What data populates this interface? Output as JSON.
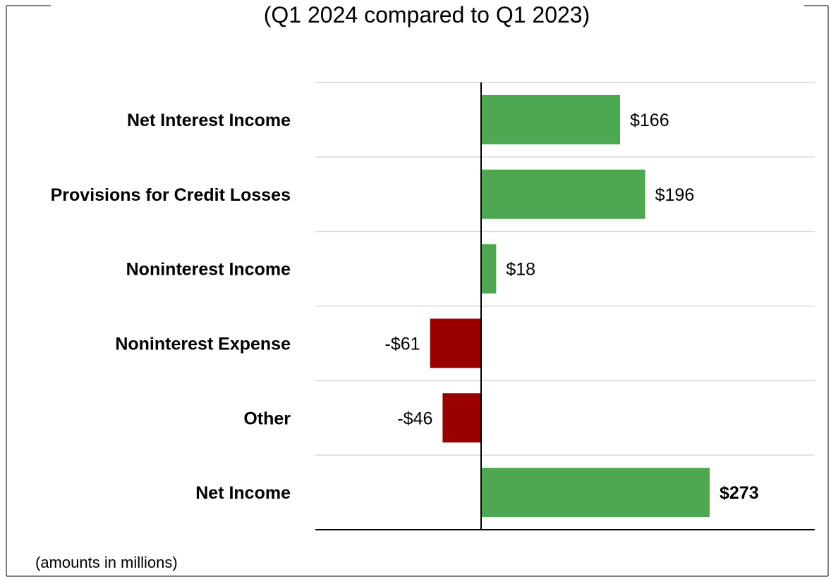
{
  "chart_data": {
    "type": "bar",
    "orientation": "horizontal",
    "title": "(Q1 2024 compared to Q1 2023)",
    "note": "(amounts in millions)",
    "categories": [
      "Net Interest Income",
      "Provisions for Credit Losses",
      "Noninterest Income",
      "Noninterest Expense",
      "Other",
      "Net Income"
    ],
    "values": [
      166,
      196,
      18,
      -61,
      -46,
      273
    ],
    "value_labels": [
      "$166",
      "$196",
      "$18",
      "-$61",
      "-$46",
      "$273"
    ],
    "xlim": [
      -200,
      400
    ],
    "grid": true,
    "legend": "none",
    "colors": {
      "positive": "#4ea852",
      "negative": "#990000"
    }
  }
}
